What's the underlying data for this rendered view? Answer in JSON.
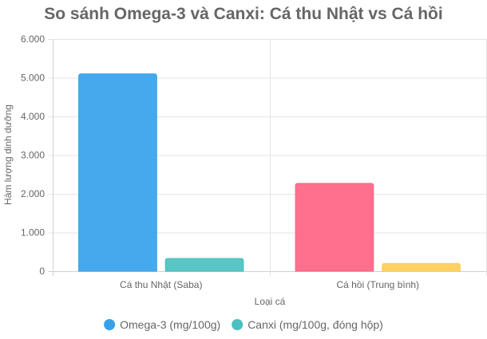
{
  "chart_data": {
    "type": "bar",
    "title": "So sánh Omega-3 và Canxi: Cá thu Nhật vs Cá hồi",
    "xlabel": "Loại cá",
    "ylabel": "Hàm lượng dinh dưỡng",
    "categories": [
      "Cá thu Nhật (Saba)",
      "Cá hồi (Trung bình)"
    ],
    "ylim": [
      0,
      6000
    ],
    "yticks": [
      0,
      1000,
      2000,
      3000,
      4000,
      5000,
      6000
    ],
    "ytick_labels": [
      "0",
      "1.000",
      "2.000",
      "3.000",
      "4.000",
      "5.000",
      "6.000"
    ],
    "grid": true,
    "legend_position": "bottom",
    "series": [
      {
        "name": "Omega-3 (mg/100g)",
        "legend_color": "#36a2eb",
        "values": [
          5100,
          2270
        ],
        "colors": [
          "#36a2eb",
          "#ff6384"
        ]
      },
      {
        "name": "Canxi (mg/100g, đóng hộp)",
        "legend_color": "#4bc0c0",
        "values": [
          330,
          200
        ],
        "colors": [
          "#4bc0c0",
          "#ffcd56"
        ]
      }
    ]
  }
}
